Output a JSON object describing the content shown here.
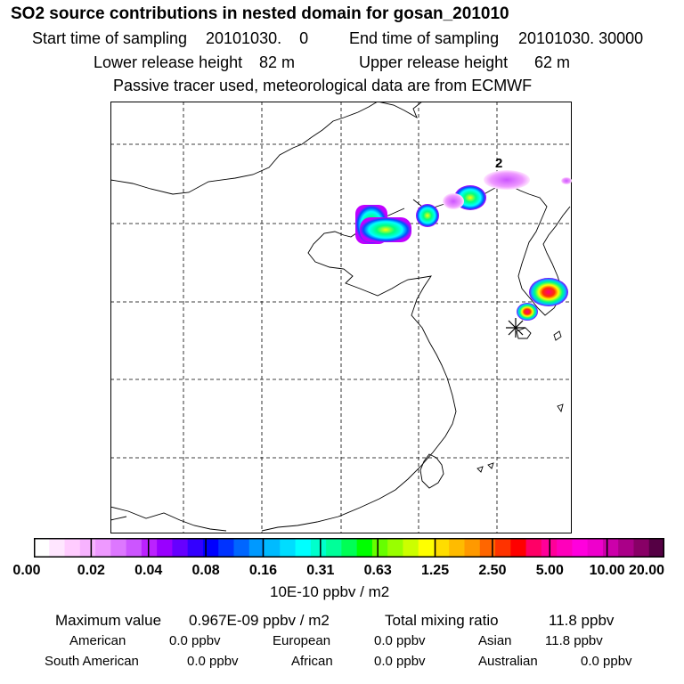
{
  "header": {
    "title": "SO2 source contributions in nested domain for gosan_201010",
    "start_label": "Start time of sampling",
    "start_value": "20101030.    0",
    "end_label": "End time of sampling",
    "end_value": "20101030. 30000",
    "lower_label": "Lower release height",
    "lower_value": "82 m",
    "upper_label": "Upper release height",
    "upper_value": "62 m",
    "tracer_note": "Passive tracer used, meteorological data are from ECMWF"
  },
  "map": {
    "contour_label": "2",
    "station_marker": "gosan-station",
    "plume_colors": [
      "#c000ff",
      "#0050ff",
      "#00ffff",
      "#00ff80",
      "#ffff00",
      "#ff8000",
      "#ff0080"
    ]
  },
  "colorbar": {
    "unit": "10E-10 ppbv / m2",
    "ticks": [
      "0.00",
      "0.02",
      "0.04",
      "0.08",
      "0.16",
      "0.31",
      "0.63",
      "1.25",
      "2.50",
      "5.00",
      "10.00",
      "20.00"
    ],
    "colors": [
      "#ffffff",
      "#ffe6ff",
      "#ffccff",
      "#f7b3ff",
      "#ee99ff",
      "#dd77ff",
      "#cc55ff",
      "#bb22ff",
      "#9900ff",
      "#6600ff",
      "#3300ff",
      "#0000ff",
      "#0033ff",
      "#0066ff",
      "#0099ff",
      "#00bbff",
      "#00ddff",
      "#00ffff",
      "#00ffcc",
      "#00ff99",
      "#00ff55",
      "#00ff00",
      "#66ff00",
      "#99ff00",
      "#ccff00",
      "#ffff00",
      "#ffdd00",
      "#ffbb00",
      "#ff9900",
      "#ff6600",
      "#ff3300",
      "#ff0000",
      "#ff0066",
      "#ff0099",
      "#ff00bb",
      "#ff00dd",
      "#ee00cc",
      "#cc00aa",
      "#aa0088",
      "#880066",
      "#550044"
    ]
  },
  "footer": {
    "max_label": "Maximum value",
    "max_value": "0.967E-09 ppbv / m2",
    "total_label": "Total mixing ratio",
    "total_value": "11.8 ppbv",
    "regions": [
      {
        "name": "American",
        "value": "0.0 ppbv"
      },
      {
        "name": "European",
        "value": "0.0 ppbv"
      },
      {
        "name": "Asian",
        "value": "11.8 ppbv"
      },
      {
        "name": "South American",
        "value": "0.0 ppbv"
      },
      {
        "name": "African",
        "value": "0.0 ppbv"
      },
      {
        "name": "Australian",
        "value": "0.0 ppbv"
      }
    ]
  }
}
